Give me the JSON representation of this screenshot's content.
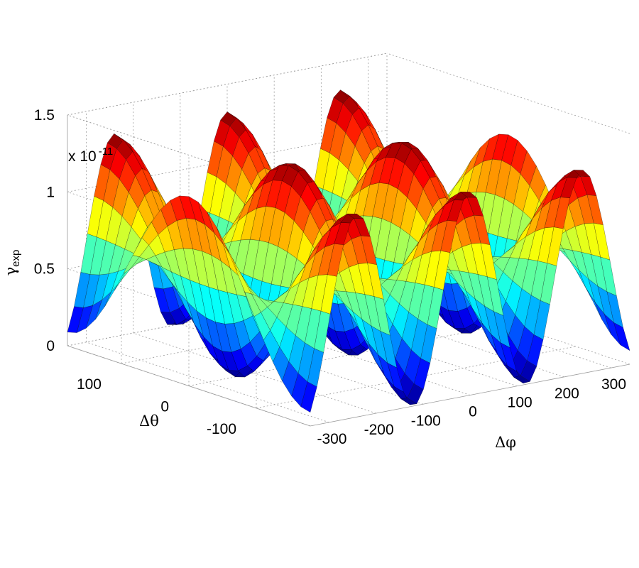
{
  "chart_data": {
    "type": "surface",
    "function": "gamma_exp = 0.66e-11 * (1 - cos(3*pi*dphi/360) * cos(pi*dtheta/180))",
    "x": {
      "label": "Δφ",
      "range": [
        -340,
        340
      ],
      "ticks": [
        -300,
        -200,
        -100,
        0,
        100,
        200,
        300
      ],
      "tick_labels": [
        "-300",
        "-200",
        "-100",
        "0",
        "100",
        "200",
        "300"
      ]
    },
    "y": {
      "label": "Δθ",
      "range": [
        -180,
        180
      ],
      "ticks": [
        -100,
        0,
        100
      ],
      "tick_labels": [
        "-100",
        "0",
        "100"
      ]
    },
    "z": {
      "label_main": "γ",
      "label_sub": "exp",
      "range": [
        0,
        1.5e-11
      ],
      "ticks": [
        0,
        0.5,
        1,
        1.5
      ],
      "tick_labels": [
        "0",
        "0.5",
        "1",
        "1.5"
      ],
      "exponent_label": "x 10",
      "exponent_power": "-11"
    },
    "peak_value": 1.32e-11,
    "minimum_value": 0,
    "colormap": "jet",
    "grid": true
  }
}
